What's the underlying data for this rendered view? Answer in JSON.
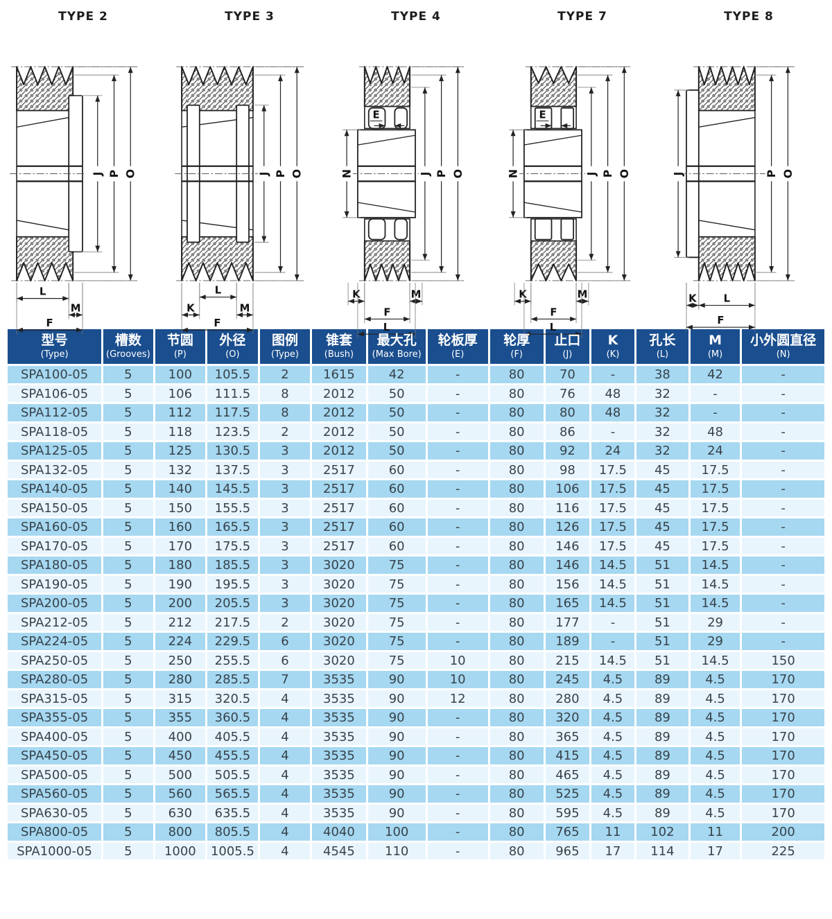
{
  "colors": {
    "header_bg": "#1a4e8e",
    "row_light": "#a6d8f1",
    "row_pale": "#e9f5fd",
    "header_text": "#ffffff",
    "cell_text": "#37424a",
    "drawing_line": "#222222"
  },
  "diagrams": [
    {
      "title": "TYPE 2",
      "variant": "2",
      "right_dims": [
        "J",
        "P",
        "O"
      ],
      "left_dims": [],
      "bottom_dims": [
        "L",
        "M",
        "F"
      ],
      "e_label": ""
    },
    {
      "title": "TYPE 3",
      "variant": "3",
      "right_dims": [
        "J",
        "P",
        "O"
      ],
      "left_dims": [],
      "bottom_dims": [
        "L",
        "K",
        "M",
        "F"
      ],
      "e_label": ""
    },
    {
      "title": "TYPE 4",
      "variant": "4",
      "right_dims": [
        "J",
        "P",
        "O"
      ],
      "left_dims": [
        "N"
      ],
      "bottom_dims": [
        "K",
        "M",
        "F",
        "L"
      ],
      "e_label": "E"
    },
    {
      "title": "TYPE 7",
      "variant": "7",
      "right_dims": [
        "J",
        "P",
        "O"
      ],
      "left_dims": [
        "N"
      ],
      "bottom_dims": [
        "K",
        "M",
        "F",
        "L"
      ],
      "e_label": "E"
    },
    {
      "title": "TYPE 8",
      "variant": "8",
      "right_dims": [
        "P",
        "O"
      ],
      "left_dims": [
        "J"
      ],
      "bottom_dims": [
        "K",
        "L",
        "F"
      ],
      "e_label": ""
    }
  ],
  "table": {
    "columns": [
      {
        "cn": "型号",
        "sub": "(Type)"
      },
      {
        "cn": "槽数",
        "sub": "(Grooves)"
      },
      {
        "cn": "节圆",
        "sub": "(P)"
      },
      {
        "cn": "外径",
        "sub": "(O)"
      },
      {
        "cn": "图例",
        "sub": "(Type)"
      },
      {
        "cn": "锥套",
        "sub": "(Bush)"
      },
      {
        "cn": "最大孔",
        "sub": "(Max Bore)"
      },
      {
        "cn": "轮板厚",
        "sub": "(E)"
      },
      {
        "cn": "轮厚",
        "sub": "(F)"
      },
      {
        "cn": "止口",
        "sub": "(J)"
      },
      {
        "cn": "K",
        "sub": "(K)"
      },
      {
        "cn": "孔长",
        "sub": "(L)"
      },
      {
        "cn": "M",
        "sub": "(M)"
      },
      {
        "cn": "小外圆直径",
        "sub": "(N)"
      }
    ],
    "rows": [
      [
        "SPA100-05",
        "5",
        "100",
        "105.5",
        "2",
        "1615",
        "42",
        "-",
        "80",
        "70",
        "-",
        "38",
        "42",
        "-"
      ],
      [
        "SPA106-05",
        "5",
        "106",
        "111.5",
        "8",
        "2012",
        "50",
        "-",
        "80",
        "76",
        "48",
        "32",
        "-",
        "-"
      ],
      [
        "SPA112-05",
        "5",
        "112",
        "117.5",
        "8",
        "2012",
        "50",
        "-",
        "80",
        "80",
        "48",
        "32",
        "-",
        "-"
      ],
      [
        "SPA118-05",
        "5",
        "118",
        "123.5",
        "2",
        "2012",
        "50",
        "-",
        "80",
        "86",
        "-",
        "32",
        "48",
        "-"
      ],
      [
        "SPA125-05",
        "5",
        "125",
        "130.5",
        "3",
        "2012",
        "50",
        "-",
        "80",
        "92",
        "24",
        "32",
        "24",
        "-"
      ],
      [
        "SPA132-05",
        "5",
        "132",
        "137.5",
        "3",
        "2517",
        "60",
        "-",
        "80",
        "98",
        "17.5",
        "45",
        "17.5",
        "-"
      ],
      [
        "SPA140-05",
        "5",
        "140",
        "145.5",
        "3",
        "2517",
        "60",
        "-",
        "80",
        "106",
        "17.5",
        "45",
        "17.5",
        "-"
      ],
      [
        "SPA150-05",
        "5",
        "150",
        "155.5",
        "3",
        "2517",
        "60",
        "-",
        "80",
        "116",
        "17.5",
        "45",
        "17.5",
        "-"
      ],
      [
        "SPA160-05",
        "5",
        "160",
        "165.5",
        "3",
        "2517",
        "60",
        "-",
        "80",
        "126",
        "17.5",
        "45",
        "17.5",
        "-"
      ],
      [
        "SPA170-05",
        "5",
        "170",
        "175.5",
        "3",
        "2517",
        "60",
        "-",
        "80",
        "146",
        "17.5",
        "45",
        "17.5",
        "-"
      ],
      [
        "SPA180-05",
        "5",
        "180",
        "185.5",
        "3",
        "3020",
        "75",
        "-",
        "80",
        "146",
        "14.5",
        "51",
        "14.5",
        "-"
      ],
      [
        "SPA190-05",
        "5",
        "190",
        "195.5",
        "3",
        "3020",
        "75",
        "-",
        "80",
        "156",
        "14.5",
        "51",
        "14.5",
        "-"
      ],
      [
        "SPA200-05",
        "5",
        "200",
        "205.5",
        "3",
        "3020",
        "75",
        "-",
        "80",
        "165",
        "14.5",
        "51",
        "14.5",
        "-"
      ],
      [
        "SPA212-05",
        "5",
        "212",
        "217.5",
        "2",
        "3020",
        "75",
        "-",
        "80",
        "177",
        "-",
        "51",
        "29",
        "-"
      ],
      [
        "SPA224-05",
        "5",
        "224",
        "229.5",
        "6",
        "3020",
        "75",
        "-",
        "80",
        "189",
        "-",
        "51",
        "29",
        "-"
      ],
      [
        "SPA250-05",
        "5",
        "250",
        "255.5",
        "6",
        "3020",
        "75",
        "10",
        "80",
        "215",
        "14.5",
        "51",
        "14.5",
        "150"
      ],
      [
        "SPA280-05",
        "5",
        "280",
        "285.5",
        "7",
        "3535",
        "90",
        "10",
        "80",
        "245",
        "4.5",
        "89",
        "4.5",
        "170"
      ],
      [
        "SPA315-05",
        "5",
        "315",
        "320.5",
        "4",
        "3535",
        "90",
        "12",
        "80",
        "280",
        "4.5",
        "89",
        "4.5",
        "170"
      ],
      [
        "SPA355-05",
        "5",
        "355",
        "360.5",
        "4",
        "3535",
        "90",
        "-",
        "80",
        "320",
        "4.5",
        "89",
        "4.5",
        "170"
      ],
      [
        "SPA400-05",
        "5",
        "400",
        "405.5",
        "4",
        "3535",
        "90",
        "-",
        "80",
        "365",
        "4.5",
        "89",
        "4.5",
        "170"
      ],
      [
        "SPA450-05",
        "5",
        "450",
        "455.5",
        "4",
        "3535",
        "90",
        "-",
        "80",
        "415",
        "4.5",
        "89",
        "4.5",
        "170"
      ],
      [
        "SPA500-05",
        "5",
        "500",
        "505.5",
        "4",
        "3535",
        "90",
        "-",
        "80",
        "465",
        "4.5",
        "89",
        "4.5",
        "170"
      ],
      [
        "SPA560-05",
        "5",
        "560",
        "565.5",
        "4",
        "3535",
        "90",
        "-",
        "80",
        "525",
        "4.5",
        "89",
        "4.5",
        "170"
      ],
      [
        "SPA630-05",
        "5",
        "630",
        "635.5",
        "4",
        "3535",
        "90",
        "-",
        "80",
        "595",
        "4.5",
        "89",
        "4.5",
        "170"
      ],
      [
        "SPA800-05",
        "5",
        "800",
        "805.5",
        "4",
        "4040",
        "100",
        "-",
        "80",
        "765",
        "11",
        "102",
        "11",
        "200"
      ],
      [
        "SPA1000-05",
        "5",
        "1000",
        "1005.5",
        "4",
        "4545",
        "110",
        "-",
        "80",
        "965",
        "17",
        "114",
        "17",
        "225"
      ]
    ]
  }
}
